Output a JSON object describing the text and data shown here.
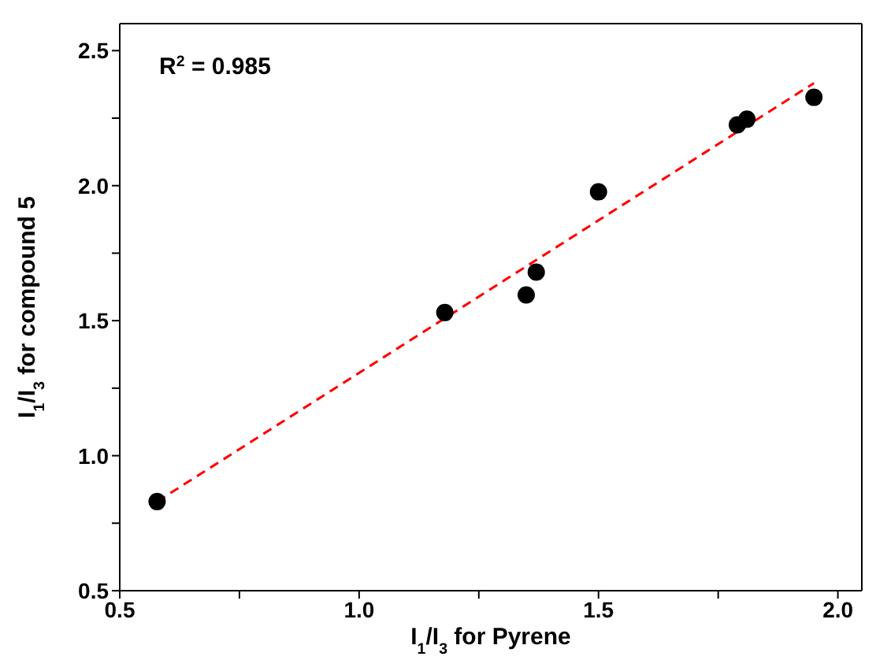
{
  "chart_data": {
    "type": "scatter",
    "xlabel": "I$_{1}$/I$_{3}$ for Pyrene",
    "ylabel": "I$_{1}$/I$_{3}$ for compound 5",
    "annotations": [
      "R$^{2}$ = 0.985"
    ],
    "series": [
      {
        "color": "#000000",
        "marker": "circle",
        "x": [
          0.578,
          1.179,
          1.349,
          1.37,
          1.5,
          1.79,
          1.81,
          1.95
        ],
        "values": [
          0.83,
          1.53,
          1.595,
          1.68,
          1.977,
          2.225,
          2.246,
          2.327
        ]
      },
      {
        "type": "line",
        "color": "#ff0000",
        "marker": "none",
        "line_style": "dashed",
        "x": [
          0.578,
          1.95
        ],
        "values": [
          0.83,
          2.38
        ]
      }
    ],
    "xlim": [
      0.5,
      2.05
    ],
    "ylim": [
      0.5,
      2.6
    ],
    "xticks": [
      {
        "value": 0.5,
        "label": "0.5"
      },
      {
        "value": 0.75,
        "label": null
      },
      {
        "value": 1,
        "label": "1.0"
      },
      {
        "value": 1.25,
        "label": null
      },
      {
        "value": 1.5,
        "label": "1.5"
      },
      {
        "value": 1.75,
        "label": null
      },
      {
        "value": 2,
        "label": "2.0"
      }
    ],
    "yticks": [
      {
        "value": 0.5,
        "label": "0.5"
      },
      {
        "value": 0.75,
        "label": null
      },
      {
        "value": 1,
        "label": "1.0"
      },
      {
        "value": 1.25,
        "label": null
      },
      {
        "value": 1.5,
        "label": "1.5"
      },
      {
        "value": 1.75,
        "label": null
      },
      {
        "value": 2,
        "label": "2.0"
      },
      {
        "value": 2.25,
        "label": null
      },
      {
        "value": 2.5,
        "label": "2.5"
      }
    ]
  }
}
